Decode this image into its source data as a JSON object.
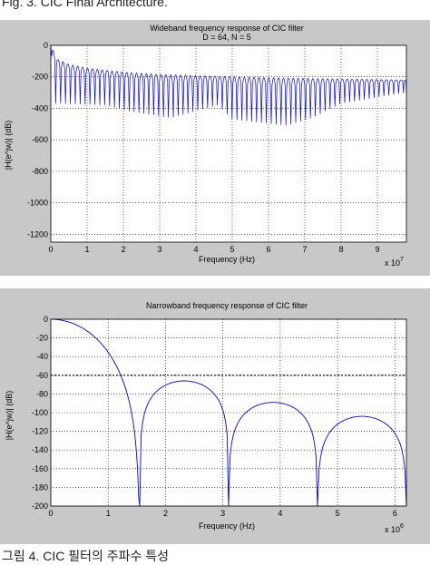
{
  "captions": {
    "top": "Fig. 3. CIC Final Architecture.",
    "bottom": "그림 4. CIC 필터의 주파수 특성"
  },
  "chart_data": [
    {
      "type": "line",
      "title": "Wideband frequency response of CIC filter",
      "subtitle": "D = 64, N = 5",
      "xlabel": "Frequency (Hz)",
      "ylabel": "|H(e^jw)| (dB)",
      "x_exponent_label": "x 10",
      "x_exponent": "7",
      "xlim": [
        0,
        9.8
      ],
      "ylim": [
        -1250,
        0
      ],
      "xticks": [
        "0",
        "1",
        "2",
        "3",
        "4",
        "5",
        "6",
        "7",
        "8",
        "9"
      ],
      "yticks": [
        "0",
        "-200",
        "-400",
        "-600",
        "-800",
        "-1000",
        "-1200"
      ],
      "grid": true,
      "series": [
        {
          "color": "#0000ff",
          "x_units": "x 10^7 Hz",
          "notch_spacing": 0.135,
          "envelope_top": {
            "x": [
              0,
              0.2,
              0.5,
              1,
              2,
              3,
              5,
              7,
              9.8
            ],
            "y": [
              0,
              -90,
              -120,
              -145,
              -170,
              -185,
              -200,
              -210,
              -220
            ]
          },
          "notch_depth": {
            "x": [
              0.3,
              1.5,
              2.2,
              3.3,
              4.6,
              5.0,
              6.5,
              7.2,
              8.0,
              9.0,
              9.8
            ],
            "y": [
              -370,
              -380,
              -420,
              -460,
              -380,
              -470,
              -510,
              -460,
              -370,
              -330,
              -300
            ]
          }
        }
      ]
    },
    {
      "type": "line",
      "title": "Narrowband frequency response of CIC filter",
      "xlabel": "Frequency (Hz)",
      "ylabel": "|H(e^jw)| (dB)",
      "x_exponent_label": "x 10",
      "x_exponent": "6",
      "xlim": [
        0,
        6.2
      ],
      "ylim": [
        -200,
        0
      ],
      "xticks": [
        "0",
        "1",
        "2",
        "3",
        "4",
        "5",
        "6"
      ],
      "yticks": [
        "0",
        "-20",
        "-40",
        "-60",
        "-80",
        "-100",
        "-120",
        "-140",
        "-160",
        "-180",
        "-200"
      ],
      "grid": true,
      "reference_line": {
        "y": -60,
        "style": "dashed"
      },
      "series": [
        {
          "color": "#0000ff",
          "x_units": "x 10^6 Hz",
          "main_lobe": {
            "x": [
              0,
              0.5,
              1.0,
              1.3,
              1.55
            ],
            "y": [
              0,
              -5,
              -40,
              -90,
              -200
            ]
          },
          "side_lobes": [
            {
              "start": 1.55,
              "end": 3.1,
              "peak_x": 2.2,
              "peak_y": -66
            },
            {
              "start": 3.1,
              "end": 4.65,
              "peak_x": 3.8,
              "peak_y": -89
            },
            {
              "start": 4.65,
              "end": 6.2,
              "peak_x": 5.35,
              "peak_y": -104
            }
          ]
        }
      ]
    }
  ]
}
